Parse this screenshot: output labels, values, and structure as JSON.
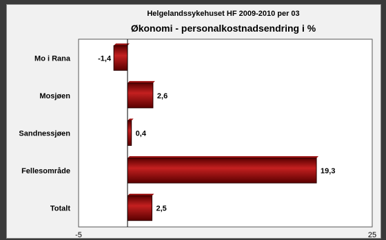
{
  "chart_data": {
    "type": "bar",
    "orientation": "horizontal",
    "title_line1": "Helgelandssykehuset HF 2009-2010 per 03",
    "title_line2": "Økonomi - personalkostnadsendring i %",
    "categories": [
      "Mo i Rana",
      "Mosjøen",
      "Sandnessjøen",
      "Fellesområde",
      "Totalt"
    ],
    "values": [
      -1.4,
      2.6,
      0.4,
      19.3,
      2.5
    ],
    "value_labels": [
      "-1,4",
      "2,6",
      "0,4",
      "19,3",
      "2,5"
    ],
    "xlim": [
      -5,
      25
    ],
    "x_tick_labels": [
      "-5",
      "25"
    ],
    "grid": false,
    "legend": "none",
    "bar_color": "#7a0000",
    "bar_highlight_color": "#c42020"
  }
}
